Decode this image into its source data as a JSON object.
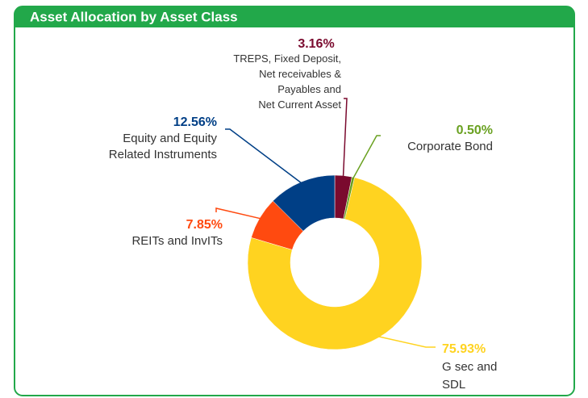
{
  "chart_data": {
    "type": "donut",
    "title": "Asset Allocation by Asset Class",
    "categories": [
      "TREPS, Fixed Deposit,\nNet receivables &\nPayables and\nNet Current Asset",
      "Corporate Bond",
      "G sec and\nSDL",
      "REITs and InvITs",
      "Equity and Equity\nRelated Instruments"
    ],
    "values": [
      3.16,
      0.5,
      75.93,
      7.85,
      12.56
    ],
    "value_labels": [
      "3.16%",
      "0.50%",
      "75.93%",
      "7.85%",
      "12.56%"
    ],
    "colors": [
      "#7a0a2e",
      "#6aa121",
      "#ffd320",
      "#ff4a10",
      "#003f86"
    ]
  }
}
